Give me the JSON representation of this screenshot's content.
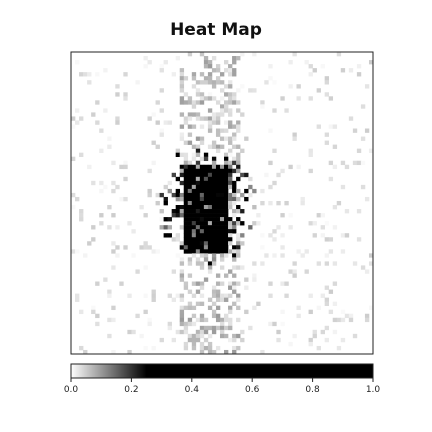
{
  "chart_data": {
    "type": "heatmap",
    "title": "Heat Map",
    "xlabel": "",
    "ylabel": "",
    "colormap": "binary",
    "color_low": "#ffffff",
    "color_high": "#000000",
    "value_range": [
      0.0,
      1.0
    ],
    "colorbar": {
      "placement": "bottom",
      "ticks": [
        "0.0",
        "0.2",
        "0.4",
        "0.6",
        "0.8",
        "1.0"
      ],
      "saturation_value": 0.25
    },
    "axes_ticks_shown": false,
    "grid": false,
    "description_of_regions": [
      {
        "region": "dense block",
        "cols": [
          0.38,
          0.52
        ],
        "rows": [
          0.38,
          0.66
        ],
        "value": 0.8
      },
      {
        "region": "surrounding cloud",
        "cols": [
          0.25,
          0.6
        ],
        "rows": [
          0.3,
          0.72
        ],
        "value": 0.15
      },
      {
        "region": "vertical streak",
        "cols": [
          0.36,
          0.56
        ],
        "rows": [
          0.0,
          1.0
        ],
        "value": 0.05
      },
      {
        "region": "background",
        "cols": [
          0.0,
          1.0
        ],
        "rows": [
          0.0,
          1.0
        ],
        "value": 0.01
      }
    ]
  }
}
